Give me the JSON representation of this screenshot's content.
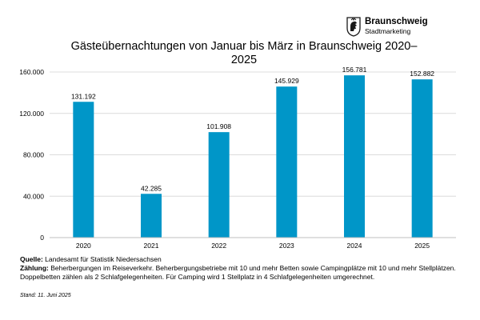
{
  "brand": {
    "name": "Braunschweig",
    "tagline": "Stadtmarketing"
  },
  "chart_data": {
    "type": "bar",
    "title": "Gästeübernachtungen von Januar bis März in Braunschweig 2020–2025",
    "title_line1": "Gästeübernachtungen von Januar bis März in Braunschweig 2020–",
    "title_line2": "2025",
    "categories": [
      "2020",
      "2021",
      "2022",
      "2023",
      "2024",
      "2025"
    ],
    "values": [
      131192,
      42285,
      101908,
      145929,
      156781,
      152882
    ],
    "value_labels": [
      "131.192",
      "42.285",
      "101.908",
      "145.929",
      "156.781",
      "152.882"
    ],
    "yticks": [
      0,
      40000,
      80000,
      120000,
      160000
    ],
    "ytick_labels": [
      "0",
      "40.000",
      "80.000",
      "120.000",
      "160.000"
    ],
    "ylim": [
      0,
      160000
    ],
    "xlabel": "",
    "ylabel": "",
    "grid": true,
    "bar_color": "#0096c8"
  },
  "footnote": {
    "source_label": "Quelle:",
    "source_text": " Landesamt für Statistik Niedersachsen",
    "count_label": "Zählung:",
    "count_text": " Beherbergungen im Reiseverkehr. Beherbergungsbetriebe mit 10 und mehr Betten sowie Campingplätze mit 10 und mehr Stellplätzen. Doppelbetten zählen als 2 Schlafgelegenheiten. Für Camping wird 1 Stellplatz in 4 Schlafgelegenheiten umgerechnet.",
    "stand": "Stand: 11. Juni 2025"
  }
}
